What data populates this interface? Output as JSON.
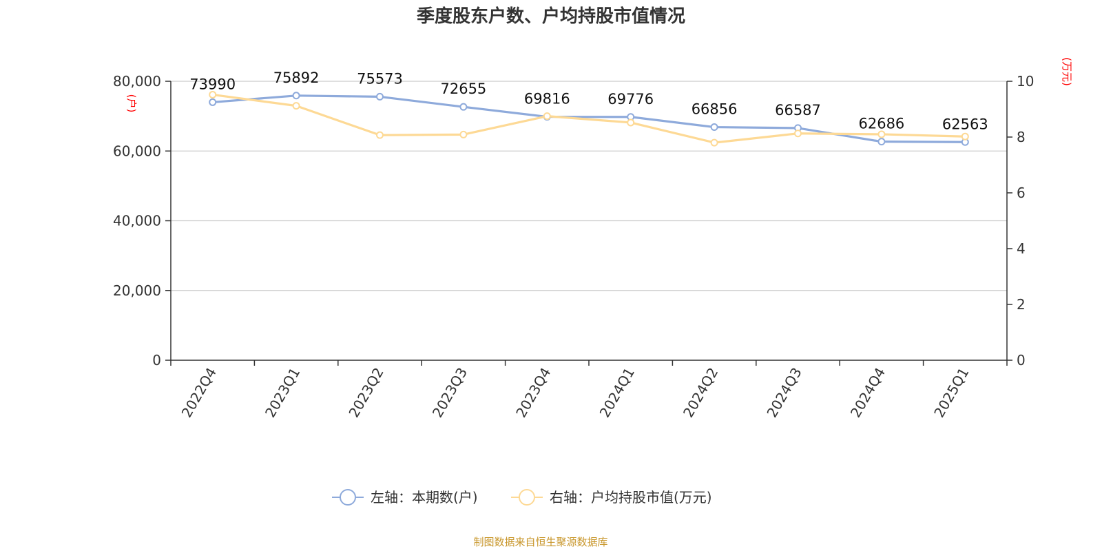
{
  "chart_data": {
    "type": "line",
    "title": "季度股东户数、户均持股市值情况",
    "categories": [
      "2022Q4",
      "2023Q1",
      "2023Q2",
      "2023Q3",
      "2023Q4",
      "2024Q1",
      "2024Q2",
      "2024Q3",
      "2024Q4",
      "2025Q1"
    ],
    "y_left": {
      "unit": "(户)",
      "ylim": [
        0,
        80000
      ],
      "ticks": [
        "0",
        "20,000",
        "40,000",
        "60,000",
        "80,000"
      ],
      "tick_values": [
        0,
        20000,
        40000,
        60000,
        80000
      ]
    },
    "y_right": {
      "unit": "(万元)",
      "ylim": [
        0,
        10
      ],
      "ticks": [
        "0",
        "2",
        "4",
        "6",
        "8",
        "10"
      ],
      "tick_values": [
        0,
        2,
        4,
        6,
        8,
        10
      ]
    },
    "series": [
      {
        "name": "左轴：本期数(户)",
        "axis": "left",
        "color": "#8eaadb",
        "values": [
          73990,
          75892,
          75573,
          72655,
          69816,
          69776,
          66856,
          66587,
          62686,
          62563
        ],
        "labels": [
          "73990",
          "75892",
          "75573",
          "72655",
          "69816",
          "69776",
          "66856",
          "66587",
          "62686",
          "62563"
        ]
      },
      {
        "name": "右轴：户均持股市值(万元)",
        "axis": "right",
        "color": "#fdd995",
        "values": [
          9.52,
          9.12,
          8.07,
          8.09,
          8.75,
          8.52,
          7.8,
          8.13,
          8.1,
          8.02
        ]
      }
    ],
    "grid": true,
    "legend_position": "bottom"
  },
  "source_text": "制图数据来自恒生聚源数据库"
}
